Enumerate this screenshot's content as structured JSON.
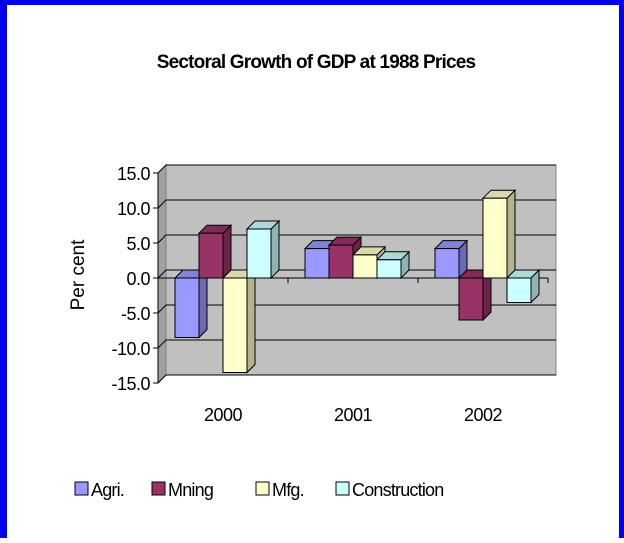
{
  "chart_data": {
    "type": "bar3d",
    "title": "Sectoral Growth of GDP at 1988 Prices",
    "y_label": "Per cent",
    "categories": [
      "2000",
      "2001",
      "2002"
    ],
    "series": [
      {
        "name": "Agri.",
        "color": "#9999ff",
        "values": [
          -8.5,
          4.2,
          4.2
        ]
      },
      {
        "name": "Mning",
        "color": "#993366",
        "values": [
          6.4,
          4.7,
          -6.0
        ]
      },
      {
        "name": "Mfg.",
        "color": "#ffffcc",
        "values": [
          -13.5,
          3.3,
          11.4
        ]
      },
      {
        "name": "Construction",
        "color": "#ccffff",
        "values": [
          7.0,
          2.6,
          -3.5
        ]
      }
    ],
    "ylim": [
      -15,
      15
    ],
    "yticks": [
      {
        "value": -15,
        "label": "-15.0"
      },
      {
        "value": -10,
        "label": "-10.0"
      },
      {
        "value": -5,
        "label": "-5.0"
      },
      {
        "value": 0,
        "label": "0.0"
      },
      {
        "value": 5,
        "label": "5.0"
      },
      {
        "value": 10,
        "label": "10.0"
      },
      {
        "value": 15,
        "label": "15.0"
      }
    ],
    "grid": true,
    "legend": "bottom"
  }
}
